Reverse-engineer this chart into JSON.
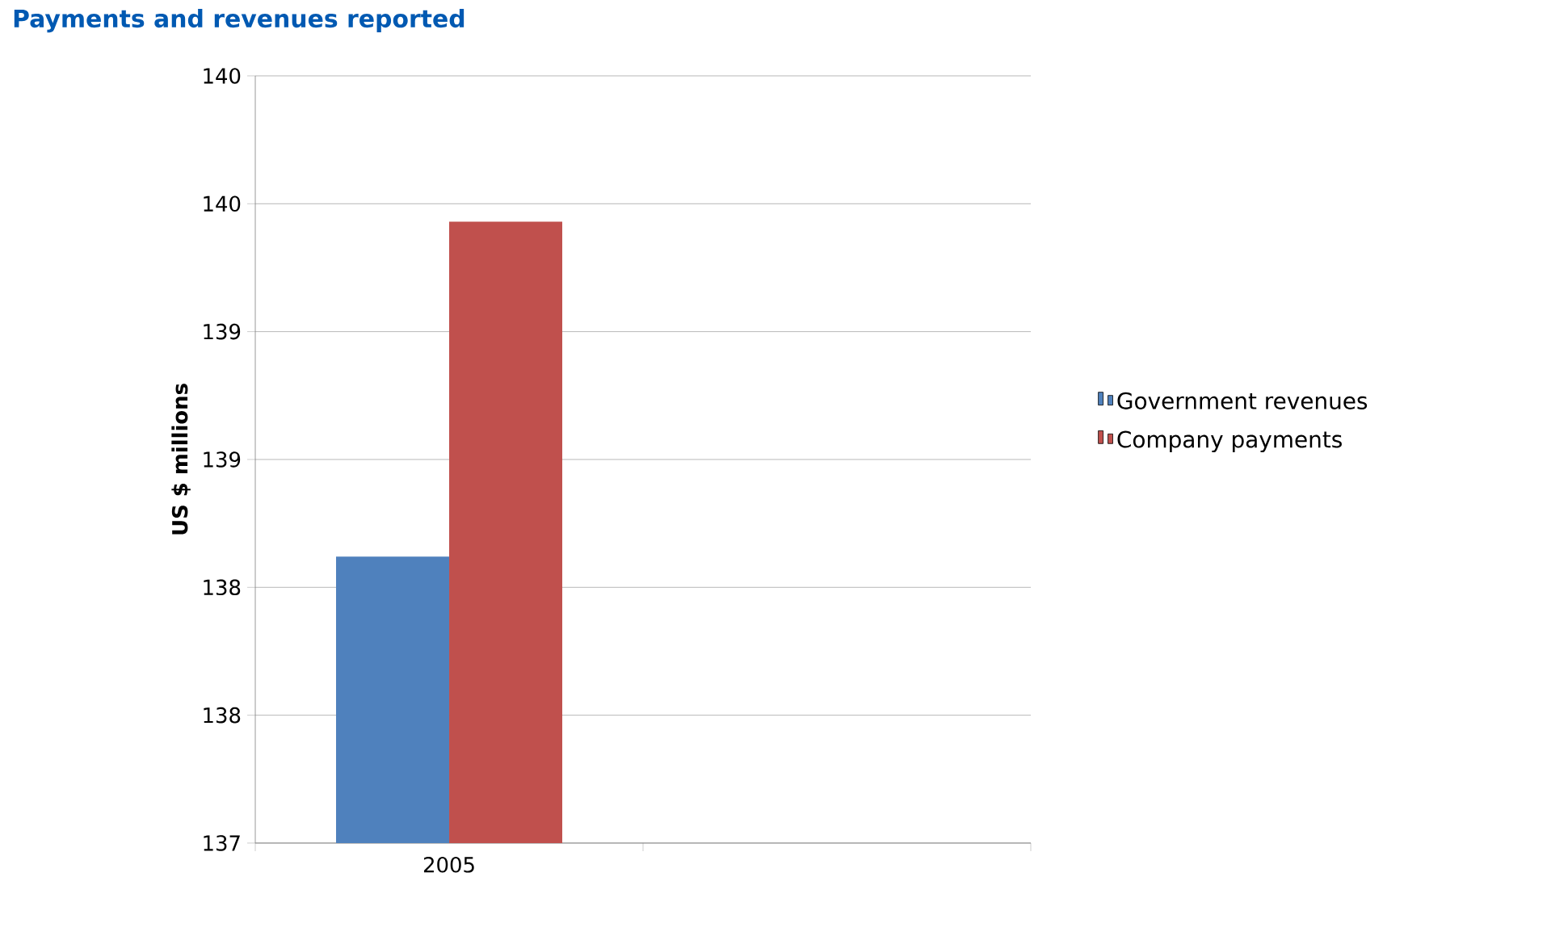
{
  "chart_data": {
    "type": "bar",
    "title": "Payments and revenues reported",
    "ylabel": "US $ millions",
    "categories": [
      "2005",
      null
    ],
    "series": [
      {
        "name": "Government revenues",
        "color": "#4f81bd",
        "values": [
          138.12,
          null
        ]
      },
      {
        "name": "Company payments",
        "color": "#c0504d",
        "values": [
          139.43,
          null
        ]
      }
    ],
    "ylim": [
      137,
      140
    ],
    "yticks": [
      {
        "value": 137,
        "label": "137"
      },
      {
        "value": 137.5,
        "label": "138"
      },
      {
        "value": 138,
        "label": "138"
      },
      {
        "value": 138.5,
        "label": "139"
      },
      {
        "value": 139,
        "label": "139"
      },
      {
        "value": 139.5,
        "label": "140"
      },
      {
        "value": 140,
        "label": "140"
      }
    ],
    "grid": "y",
    "legend": "right"
  }
}
